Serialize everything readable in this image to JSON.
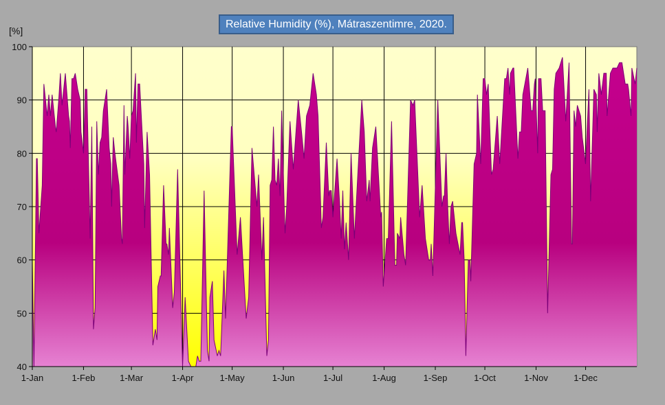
{
  "chart_data": {
    "type": "area",
    "title": "Relative Humidity (%), Mátraszentimre, 2020.",
    "ylabel": "[%]",
    "xlabel": "",
    "ylim": [
      40,
      100
    ],
    "xlim": [
      0,
      366
    ],
    "x_unit": "day of year (0 = 1-Jan)",
    "yticks": [
      40,
      50,
      60,
      70,
      80,
      90,
      100
    ],
    "xticks": [
      {
        "day": 0,
        "label": "1-Jan"
      },
      {
        "day": 31,
        "label": "1-Feb"
      },
      {
        "day": 60,
        "label": "1-Mar"
      },
      {
        "day": 91,
        "label": "1-Apr"
      },
      {
        "day": 121,
        "label": "1-May"
      },
      {
        "day": 152,
        "label": "1-Jun"
      },
      {
        "day": 182,
        "label": "1-Jul"
      },
      {
        "day": 213,
        "label": "1-Aug"
      },
      {
        "day": 244,
        "label": "1-Sep"
      },
      {
        "day": 274,
        "label": "1-Oct"
      },
      {
        "day": 305,
        "label": "1-Nov"
      },
      {
        "day": 335,
        "label": "1-Dec"
      }
    ],
    "grid": true,
    "colors": {
      "fill_top": "#c4008e",
      "fill_mid": "#b8007f",
      "fill_bottom": "#e682d2",
      "line": "#7a0078",
      "bg_top": "#ffffcc",
      "bg_bottom": "#ffff00",
      "page": "#a9a9a9",
      "title_bg": "#4f81bd"
    },
    "x": [
      0,
      1,
      2.5,
      3,
      4,
      6,
      7,
      9,
      10,
      11,
      12,
      14,
      14.5,
      16,
      17,
      18,
      20,
      22,
      22.5,
      23,
      24,
      25,
      26,
      27.5,
      29,
      29.5,
      31,
      32,
      33,
      35,
      36,
      37,
      38,
      39,
      40,
      41,
      42,
      43,
      45,
      46.5,
      47.5,
      48,
      49,
      50,
      52.5,
      54,
      54.5,
      55.5,
      56,
      57.5,
      58,
      59,
      60,
      61,
      62.5,
      63,
      64,
      65,
      67.5,
      68,
      69.5,
      71,
      73,
      74.5,
      75.5,
      76,
      77.5,
      78,
      79.5,
      81,
      81.5,
      82.5,
      83,
      85,
      86,
      88,
      91,
      92.5,
      94.5,
      96,
      99,
      100,
      101,
      102,
      104,
      106,
      107,
      107.5,
      109,
      110,
      112,
      113,
      114,
      116,
      117,
      120.5,
      121,
      124,
      126,
      129.5,
      131,
      133,
      136,
      137,
      139,
      140,
      142,
      143,
      144,
      145,
      146,
      147,
      148,
      149,
      150,
      151,
      152.5,
      153,
      154,
      156,
      158,
      161,
      163,
      164.5,
      166,
      168,
      170,
      172,
      173,
      175,
      176,
      178,
      179.5,
      180,
      181,
      182,
      184.5,
      186,
      187,
      188,
      189,
      190,
      191.5,
      193,
      195,
      199.5,
      201,
      202.5,
      204,
      204.5,
      206,
      208,
      211,
      211.5,
      212.5,
      214.5,
      215.5,
      217.5,
      219.5,
      220.5,
      221,
      222.5,
      223,
      225,
      226,
      229,
      230.5,
      231.5,
      234.5,
      236,
      238,
      240,
      241,
      241.5,
      242.5,
      245.5,
      248,
      249,
      249.5,
      250.5,
      251.5,
      252.5,
      253.5,
      254.5,
      256.5,
      259,
      260,
      260.5,
      261.5,
      262.5,
      264,
      265,
      265.5,
      267.5,
      269,
      269.5,
      271.5,
      273,
      274,
      275,
      276,
      278,
      279,
      281.5,
      283,
      286,
      287,
      288,
      289,
      289.5,
      291,
      291.5,
      294,
      295,
      296,
      297,
      300,
      302,
      303,
      304,
      304.5,
      306,
      306.5,
      308,
      309,
      310.5,
      312,
      314,
      315,
      316,
      317,
      319,
      321,
      323,
      325,
      326.5,
      327,
      328,
      329,
      330,
      332,
      333,
      335,
      337,
      338,
      340,
      341.5,
      342,
      343,
      344.5,
      346,
      347.5,
      348,
      350,
      351.5,
      354,
      355.5,
      357,
      359,
      360.5,
      361,
      362.5,
      363,
      365,
      366
    ],
    "y": [
      60,
      40,
      79,
      79,
      65,
      74,
      93,
      87,
      91,
      87,
      91,
      85,
      84,
      90,
      95,
      89,
      95,
      87,
      86,
      81,
      94,
      94,
      95,
      92,
      90,
      84,
      80,
      92,
      92,
      64,
      85,
      47,
      51,
      86,
      76,
      82,
      83,
      88,
      92,
      81,
      78,
      70,
      83,
      80,
      74,
      64,
      63,
      89,
      76,
      87,
      85,
      79,
      87,
      88,
      95,
      82,
      93,
      93,
      78,
      66,
      84,
      76,
      44,
      47,
      45,
      55,
      57,
      57,
      74,
      63,
      63,
      61,
      66,
      51,
      54,
      77,
      40,
      53,
      41,
      40,
      40,
      42,
      41,
      41,
      73,
      43,
      41,
      53,
      56,
      45,
      42,
      43,
      42,
      58,
      49,
      85,
      85,
      61,
      68,
      49,
      53,
      81,
      70,
      76,
      60,
      68,
      42,
      45,
      74,
      75,
      85,
      75,
      74,
      79,
      72,
      88,
      70,
      65,
      70,
      86,
      77,
      90,
      84,
      79,
      87,
      89,
      95,
      91,
      87,
      66,
      68,
      82,
      72,
      73,
      73,
      68,
      79,
      71,
      64,
      73,
      62,
      67,
      60,
      80,
      64,
      90,
      84,
      71,
      75,
      71,
      81,
      85,
      68,
      69,
      55,
      64,
      64,
      86,
      59,
      59,
      65,
      64,
      68,
      61,
      59,
      90,
      89,
      90,
      68,
      74,
      64,
      60,
      60,
      63,
      57,
      90,
      70,
      72,
      72,
      80,
      70,
      63,
      70,
      71,
      65,
      61,
      67,
      67,
      60,
      42,
      60,
      60,
      56,
      78,
      80,
      91,
      78,
      94,
      94,
      91,
      93,
      76,
      77,
      87,
      78,
      94,
      94,
      96,
      91,
      95,
      96,
      96,
      79,
      84,
      84,
      91,
      96,
      88,
      88,
      93,
      94,
      80,
      94,
      94,
      88,
      88,
      50,
      76,
      77,
      92,
      95,
      96,
      98,
      86,
      97,
      63,
      63,
      88,
      85,
      89,
      87,
      83,
      78,
      92,
      71,
      92,
      91,
      84,
      95,
      91,
      95,
      95,
      87,
      95,
      96,
      96,
      97,
      97,
      93,
      93,
      92,
      87,
      96,
      93,
      96
    ]
  }
}
